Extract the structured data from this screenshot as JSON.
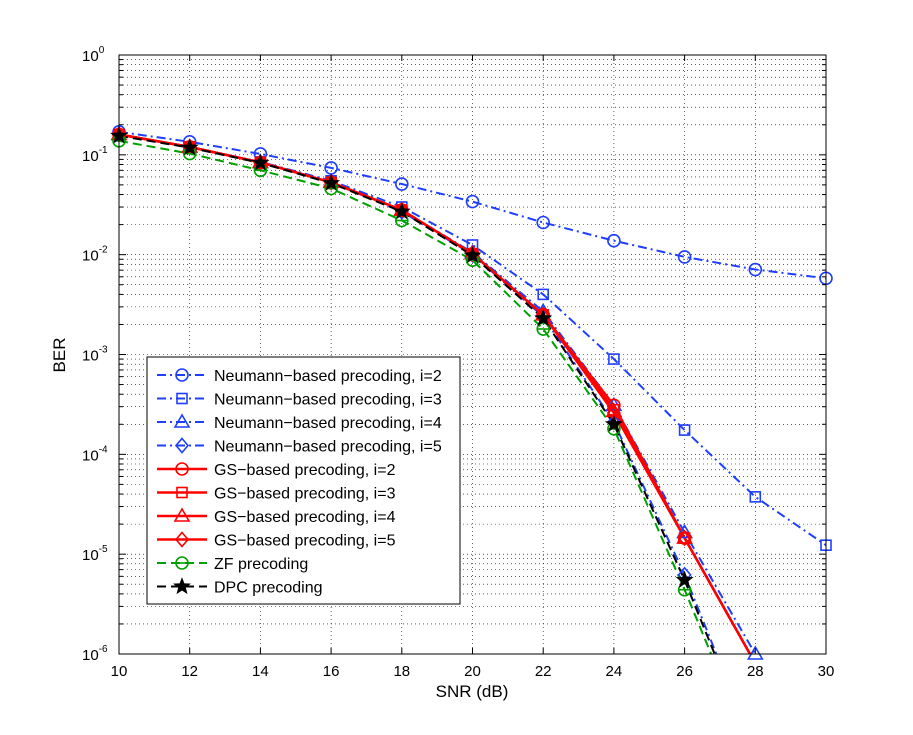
{
  "chart_data": {
    "type": "line",
    "title": "",
    "xlabel": "SNR (dB)",
    "ylabel": "BER",
    "xlim": [
      10,
      30
    ],
    "ylim": [
      1e-06,
      1
    ],
    "yscale": "log",
    "grid": true,
    "legend_position": "bottom-left",
    "x_ticks": [
      "10",
      "12",
      "14",
      "16",
      "18",
      "20",
      "22",
      "24",
      "26",
      "28",
      "30"
    ],
    "y_ticks": [
      {
        "base": "10",
        "exp": "-6"
      },
      {
        "base": "10",
        "exp": "-5"
      },
      {
        "base": "10",
        "exp": "-4"
      },
      {
        "base": "10",
        "exp": "-3"
      },
      {
        "base": "10",
        "exp": "-2"
      },
      {
        "base": "10",
        "exp": "-1"
      },
      {
        "base": "10",
        "exp": "0"
      }
    ],
    "series": [
      {
        "name": "Neumann−based precoding, i=2",
        "color": "#1f3fff",
        "line": "dashdot",
        "marker": "circle",
        "x": [
          10,
          12,
          14,
          16,
          18,
          20,
          22,
          24,
          26,
          28,
          30
        ],
        "y": [
          0.17,
          0.135,
          0.102,
          0.074,
          0.051,
          0.034,
          0.021,
          0.0138,
          0.0095,
          0.0071,
          0.0058
        ]
      },
      {
        "name": "Neumann−based precoding, i=3",
        "color": "#1f3fff",
        "line": "dashdot",
        "marker": "square",
        "x": [
          10,
          12,
          14,
          16,
          18,
          20,
          22,
          24,
          26,
          28,
          30
        ],
        "y": [
          0.16,
          0.12,
          0.085,
          0.055,
          0.03,
          0.0125,
          0.004,
          0.0009,
          0.000175,
          3.75e-05,
          1.23e-05
        ]
      },
      {
        "name": "Neumann−based precoding, i=4",
        "color": "#1f3fff",
        "line": "dashdot",
        "marker": "triangle",
        "x": [
          10,
          12,
          14,
          16,
          18,
          20,
          22,
          24,
          26,
          28
        ],
        "y": [
          0.16,
          0.12,
          0.084,
          0.054,
          0.028,
          0.0105,
          0.0027,
          0.00031,
          1.65e-05,
          1e-06
        ]
      },
      {
        "name": "Neumann−based precoding, i=5",
        "color": "#1f3fff",
        "line": "dashdot",
        "marker": "diamond",
        "x": [
          10,
          12,
          14,
          16,
          18,
          20,
          22,
          24,
          26,
          26.9
        ],
        "y": [
          0.16,
          0.12,
          0.084,
          0.053,
          0.027,
          0.01,
          0.0024,
          0.00021,
          6.2e-06,
          1e-06
        ]
      },
      {
        "name": "GS−based precoding, i=2",
        "color": "#ff0000",
        "line": "solid",
        "marker": "circle",
        "x": [
          10,
          12,
          14,
          16,
          18,
          20,
          22,
          24,
          26,
          27.85
        ],
        "y": [
          0.16,
          0.12,
          0.084,
          0.053,
          0.028,
          0.0102,
          0.0025,
          0.00031,
          1.45e-05,
          1e-06
        ]
      },
      {
        "name": "GS−based precoding, i=3",
        "color": "#ff0000",
        "line": "solid",
        "marker": "square",
        "x": [
          10,
          12,
          14,
          16,
          18,
          20,
          22,
          24,
          26,
          27.85
        ],
        "y": [
          0.16,
          0.12,
          0.084,
          0.053,
          0.028,
          0.0102,
          0.0025,
          0.00028,
          1.45e-05,
          1e-06
        ]
      },
      {
        "name": "GS−based precoding, i=4",
        "color": "#ff0000",
        "line": "solid",
        "marker": "triangle",
        "x": [
          10,
          12,
          14,
          16,
          18,
          20,
          22,
          24,
          26,
          27.85
        ],
        "y": [
          0.16,
          0.12,
          0.084,
          0.053,
          0.028,
          0.0102,
          0.0025,
          0.00027,
          1.45e-05,
          1e-06
        ]
      },
      {
        "name": "GS−based precoding, i=5",
        "color": "#ff0000",
        "line": "solid",
        "marker": "diamond",
        "x": [
          10,
          12,
          14,
          16,
          18,
          20,
          22,
          24,
          26,
          27.85
        ],
        "y": [
          0.16,
          0.12,
          0.084,
          0.053,
          0.028,
          0.0102,
          0.0025,
          0.00026,
          1.45e-05,
          1e-06
        ]
      },
      {
        "name": "ZF precoding",
        "color": "#00a000",
        "line": "dashed",
        "marker": "circle-dash",
        "x": [
          10,
          12,
          14,
          16,
          18,
          20,
          22,
          24,
          26,
          26.75
        ],
        "y": [
          0.138,
          0.103,
          0.07,
          0.046,
          0.022,
          0.0088,
          0.0018,
          0.00018,
          4.4e-06,
          1e-06
        ]
      },
      {
        "name": "DPC precoding",
        "color": "#000000",
        "line": "dashed",
        "marker": "star",
        "x": [
          10,
          12,
          14,
          16,
          18,
          20,
          22,
          24,
          26,
          26.85
        ],
        "y": [
          0.155,
          0.118,
          0.083,
          0.052,
          0.027,
          0.0098,
          0.0023,
          0.0002,
          5.5e-06,
          1e-06
        ]
      }
    ]
  }
}
